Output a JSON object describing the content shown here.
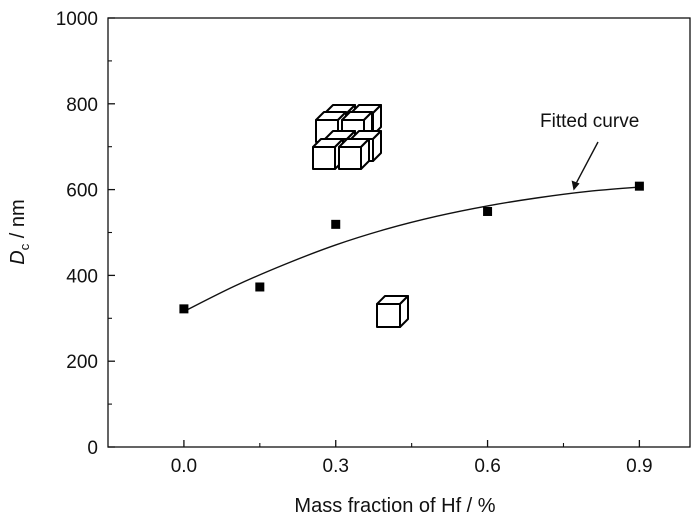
{
  "chart_data": {
    "type": "scatter",
    "title": "",
    "xlabel": "Mass fraction of Hf / %",
    "ylabel_main": "D",
    "ylabel_sub": "c",
    "ylabel_unit": " / nm",
    "xlim": [
      -0.15,
      1.0
    ],
    "ylim": [
      0,
      1000
    ],
    "xticks": [
      0.0,
      0.3,
      0.6,
      0.9
    ],
    "xtick_labels": [
      "0.0",
      "0.3",
      "0.6",
      "0.9"
    ],
    "yticks": [
      0,
      200,
      400,
      600,
      800,
      1000
    ],
    "ytick_labels": [
      "0",
      "200",
      "400",
      "600",
      "800",
      "1000"
    ],
    "grid": false,
    "series": [
      {
        "values": [
          {
            "x": 0.0,
            "y": 322
          },
          {
            "x": 0.15,
            "y": 373
          },
          {
            "x": 0.3,
            "y": 519
          },
          {
            "x": 0.6,
            "y": 549
          },
          {
            "x": 0.9,
            "y": 608
          }
        ]
      }
    ],
    "fit_curve": {
      "x": [
        0.0,
        0.1,
        0.2,
        0.3,
        0.4,
        0.5,
        0.6,
        0.7,
        0.8,
        0.9
      ],
      "y": [
        316,
        375,
        426,
        471,
        508,
        538,
        562,
        581,
        596,
        606
      ]
    },
    "annotations": {
      "fitted_curve_label": "Fitted curve",
      "arrow_target": {
        "x": 0.77,
        "y": 598
      }
    }
  }
}
